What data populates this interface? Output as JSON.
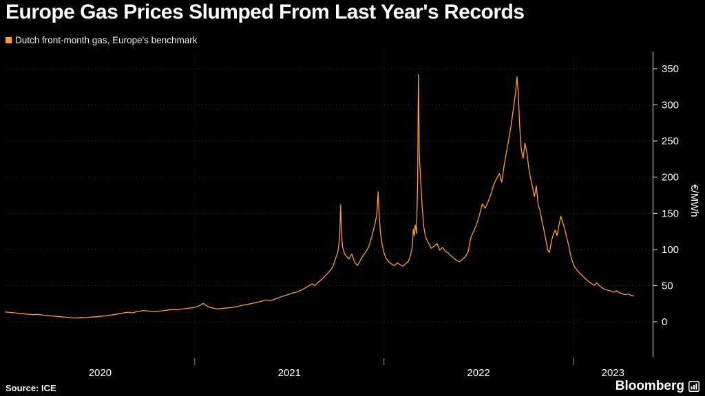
{
  "header": {
    "title": "Europe Gas Prices Slumped From Last Year's Records",
    "legend": {
      "label": "Dutch front-month gas, Europe's benchmark"
    }
  },
  "footer": {
    "source": "Source: ICE",
    "brand": "Bloomberg"
  },
  "chart_data": {
    "type": "line",
    "title": "Europe Gas Prices Slumped From Last Year's Records",
    "series_name": "Dutch front-month gas (Europe's benchmark)",
    "ylabel": "€/MWh",
    "xlabel": "",
    "line_color": "#ffa028",
    "background_color": "#000000",
    "grid": true,
    "legend_position": "top-left",
    "ylim": [
      0,
      370
    ],
    "yticks": [
      0,
      50,
      100,
      150,
      200,
      250,
      300,
      350
    ],
    "x_range": [
      2020.0,
      2023.42
    ],
    "x_boundaries": [
      2021,
      2022,
      2023
    ],
    "year_labels": [
      {
        "label": "2020",
        "t": 2020.5
      },
      {
        "label": "2021",
        "t": 2021.5
      },
      {
        "label": "2022",
        "t": 2022.5
      },
      {
        "label": "2023",
        "t": 2023.21
      }
    ],
    "points": [
      [
        2020.0,
        13.5
      ],
      [
        2020.03,
        12.8
      ],
      [
        2020.06,
        12.0
      ],
      [
        2020.09,
        11.2
      ],
      [
        2020.12,
        10.4
      ],
      [
        2020.15,
        9.8
      ],
      [
        2020.17,
        10.3
      ],
      [
        2020.2,
        9.0
      ],
      [
        2020.23,
        8.4
      ],
      [
        2020.26,
        7.6
      ],
      [
        2020.29,
        6.9
      ],
      [
        2020.32,
        6.3
      ],
      [
        2020.35,
        5.6
      ],
      [
        2020.38,
        5.2
      ],
      [
        2020.4,
        6.0
      ],
      [
        2020.42,
        5.6
      ],
      [
        2020.45,
        6.4
      ],
      [
        2020.48,
        6.9
      ],
      [
        2020.5,
        7.4
      ],
      [
        2020.53,
        8.3
      ],
      [
        2020.56,
        9.4
      ],
      [
        2020.58,
        10.2
      ],
      [
        2020.61,
        11.6
      ],
      [
        2020.63,
        12.6
      ],
      [
        2020.65,
        13.2
      ],
      [
        2020.67,
        12.4
      ],
      [
        2020.69,
        13.8
      ],
      [
        2020.71,
        14.6
      ],
      [
        2020.73,
        15.6
      ],
      [
        2020.75,
        14.9
      ],
      [
        2020.77,
        14.3
      ],
      [
        2020.79,
        13.9
      ],
      [
        2020.81,
        14.6
      ],
      [
        2020.83,
        15.2
      ],
      [
        2020.85,
        15.9
      ],
      [
        2020.87,
        16.6
      ],
      [
        2020.89,
        17.1
      ],
      [
        2020.91,
        16.6
      ],
      [
        2020.93,
        17.6
      ],
      [
        2020.95,
        18.2
      ],
      [
        2020.97,
        18.8
      ],
      [
        2020.99,
        19.4
      ],
      [
        2021.01,
        20.5
      ],
      [
        2021.03,
        23.0
      ],
      [
        2021.045,
        25.5
      ],
      [
        2021.06,
        22.5
      ],
      [
        2021.08,
        20.0
      ],
      [
        2021.1,
        18.8
      ],
      [
        2021.12,
        17.8
      ],
      [
        2021.14,
        18.3
      ],
      [
        2021.16,
        18.8
      ],
      [
        2021.18,
        19.3
      ],
      [
        2021.2,
        19.9
      ],
      [
        2021.22,
        20.8
      ],
      [
        2021.24,
        22.2
      ],
      [
        2021.26,
        23.2
      ],
      [
        2021.28,
        24.1
      ],
      [
        2021.3,
        25.2
      ],
      [
        2021.32,
        26.3
      ],
      [
        2021.34,
        27.6
      ],
      [
        2021.36,
        29.0
      ],
      [
        2021.38,
        30.1
      ],
      [
        2021.4,
        29.2
      ],
      [
        2021.42,
        31.0
      ],
      [
        2021.44,
        32.8
      ],
      [
        2021.46,
        34.9
      ],
      [
        2021.48,
        36.4
      ],
      [
        2021.5,
        38.1
      ],
      [
        2021.52,
        39.9
      ],
      [
        2021.54,
        41.2
      ],
      [
        2021.56,
        43.4
      ],
      [
        2021.58,
        46.2
      ],
      [
        2021.6,
        49.3
      ],
      [
        2021.62,
        52.4
      ],
      [
        2021.635,
        50.2
      ],
      [
        2021.65,
        53.8
      ],
      [
        2021.67,
        58.5
      ],
      [
        2021.69,
        63.5
      ],
      [
        2021.71,
        69.0
      ],
      [
        2021.73,
        76.0
      ],
      [
        2021.745,
        88.0
      ],
      [
        2021.757,
        97.0
      ],
      [
        2021.766,
        118.0
      ],
      [
        2021.771,
        162.0
      ],
      [
        2021.776,
        120.0
      ],
      [
        2021.781,
        104.0
      ],
      [
        2021.79,
        95.0
      ],
      [
        2021.8,
        91.0
      ],
      [
        2021.815,
        87.0
      ],
      [
        2021.83,
        94.0
      ],
      [
        2021.845,
        82.0
      ],
      [
        2021.86,
        78.0
      ],
      [
        2021.875,
        85.0
      ],
      [
        2021.89,
        92.0
      ],
      [
        2021.905,
        97.0
      ],
      [
        2021.92,
        104.0
      ],
      [
        2021.935,
        117.0
      ],
      [
        2021.95,
        133.0
      ],
      [
        2021.962,
        148.0
      ],
      [
        2021.969,
        180.0
      ],
      [
        2021.975,
        146.0
      ],
      [
        2021.982,
        121.0
      ],
      [
        2021.99,
        107.0
      ],
      [
        2022.0,
        96.0
      ],
      [
        2022.01,
        88.0
      ],
      [
        2022.025,
        83.0
      ],
      [
        2022.04,
        80.0
      ],
      [
        2022.055,
        77.5
      ],
      [
        2022.07,
        81.5
      ],
      [
        2022.085,
        79.0
      ],
      [
        2022.1,
        77.0
      ],
      [
        2022.115,
        80.5
      ],
      [
        2022.13,
        84.0
      ],
      [
        2022.14,
        92.0
      ],
      [
        2022.15,
        104.0
      ],
      [
        2022.155,
        128.0
      ],
      [
        2022.16,
        119.0
      ],
      [
        2022.165,
        134.0
      ],
      [
        2022.172,
        122.0
      ],
      [
        2022.178,
        193.0
      ],
      [
        2022.182,
        342.0
      ],
      [
        2022.187,
        230.0
      ],
      [
        2022.193,
        199.0
      ],
      [
        2022.2,
        166.0
      ],
      [
        2022.21,
        132.0
      ],
      [
        2022.22,
        117.0
      ],
      [
        2022.235,
        109.0
      ],
      [
        2022.25,
        101.5
      ],
      [
        2022.265,
        104.5
      ],
      [
        2022.28,
        108.0
      ],
      [
        2022.295,
        99.0
      ],
      [
        2022.31,
        103.0
      ],
      [
        2022.325,
        97.0
      ],
      [
        2022.34,
        95.0
      ],
      [
        2022.355,
        91.0
      ],
      [
        2022.37,
        88.0
      ],
      [
        2022.385,
        84.5
      ],
      [
        2022.4,
        83.0
      ],
      [
        2022.415,
        86.5
      ],
      [
        2022.43,
        90.0
      ],
      [
        2022.445,
        97.0
      ],
      [
        2022.46,
        117.0
      ],
      [
        2022.475,
        126.0
      ],
      [
        2022.49,
        135.0
      ],
      [
        2022.505,
        148.0
      ],
      [
        2022.52,
        163.0
      ],
      [
        2022.535,
        157.0
      ],
      [
        2022.55,
        166.0
      ],
      [
        2022.565,
        176.0
      ],
      [
        2022.58,
        190.0
      ],
      [
        2022.595,
        198.0
      ],
      [
        2022.61,
        205.0
      ],
      [
        2022.622,
        193.0
      ],
      [
        2022.635,
        216.0
      ],
      [
        2022.648,
        236.0
      ],
      [
        2022.66,
        253.0
      ],
      [
        2022.672,
        272.0
      ],
      [
        2022.684,
        295.0
      ],
      [
        2022.695,
        316.0
      ],
      [
        2022.703,
        339.0
      ],
      [
        2022.71,
        314.0
      ],
      [
        2022.717,
        271.0
      ],
      [
        2022.725,
        239.0
      ],
      [
        2022.735,
        226.0
      ],
      [
        2022.745,
        247.0
      ],
      [
        2022.755,
        234.0
      ],
      [
        2022.765,
        213.0
      ],
      [
        2022.775,
        198.0
      ],
      [
        2022.785,
        186.0
      ],
      [
        2022.795,
        173.0
      ],
      [
        2022.805,
        188.0
      ],
      [
        2022.815,
        161.0
      ],
      [
        2022.825,
        154.0
      ],
      [
        2022.835,
        139.0
      ],
      [
        2022.845,
        127.0
      ],
      [
        2022.855,
        114.0
      ],
      [
        2022.865,
        99.0
      ],
      [
        2022.875,
        96.0
      ],
      [
        2022.885,
        112.0
      ],
      [
        2022.895,
        121.0
      ],
      [
        2022.905,
        127.0
      ],
      [
        2022.915,
        119.0
      ],
      [
        2022.925,
        134.0
      ],
      [
        2022.935,
        146.0
      ],
      [
        2022.945,
        137.0
      ],
      [
        2022.955,
        129.0
      ],
      [
        2022.965,
        117.0
      ],
      [
        2022.975,
        107.0
      ],
      [
        2022.985,
        94.0
      ],
      [
        2022.995,
        84.0
      ],
      [
        2023.005,
        77.0
      ],
      [
        2023.02,
        71.5
      ],
      [
        2023.035,
        67.0
      ],
      [
        2023.05,
        63.5
      ],
      [
        2023.065,
        59.5
      ],
      [
        2023.08,
        56.0
      ],
      [
        2023.095,
        53.0
      ],
      [
        2023.11,
        50.5
      ],
      [
        2023.125,
        53.5
      ],
      [
        2023.14,
        49.5
      ],
      [
        2023.155,
        46.5
      ],
      [
        2023.17,
        44.5
      ],
      [
        2023.185,
        43.5
      ],
      [
        2023.2,
        42.5
      ],
      [
        2023.215,
        41.0
      ],
      [
        2023.23,
        43.0
      ],
      [
        2023.245,
        40.0
      ],
      [
        2023.26,
        38.5
      ],
      [
        2023.275,
        37.5
      ],
      [
        2023.29,
        38.5
      ],
      [
        2023.305,
        36.5
      ],
      [
        2023.32,
        35.8
      ]
    ]
  }
}
